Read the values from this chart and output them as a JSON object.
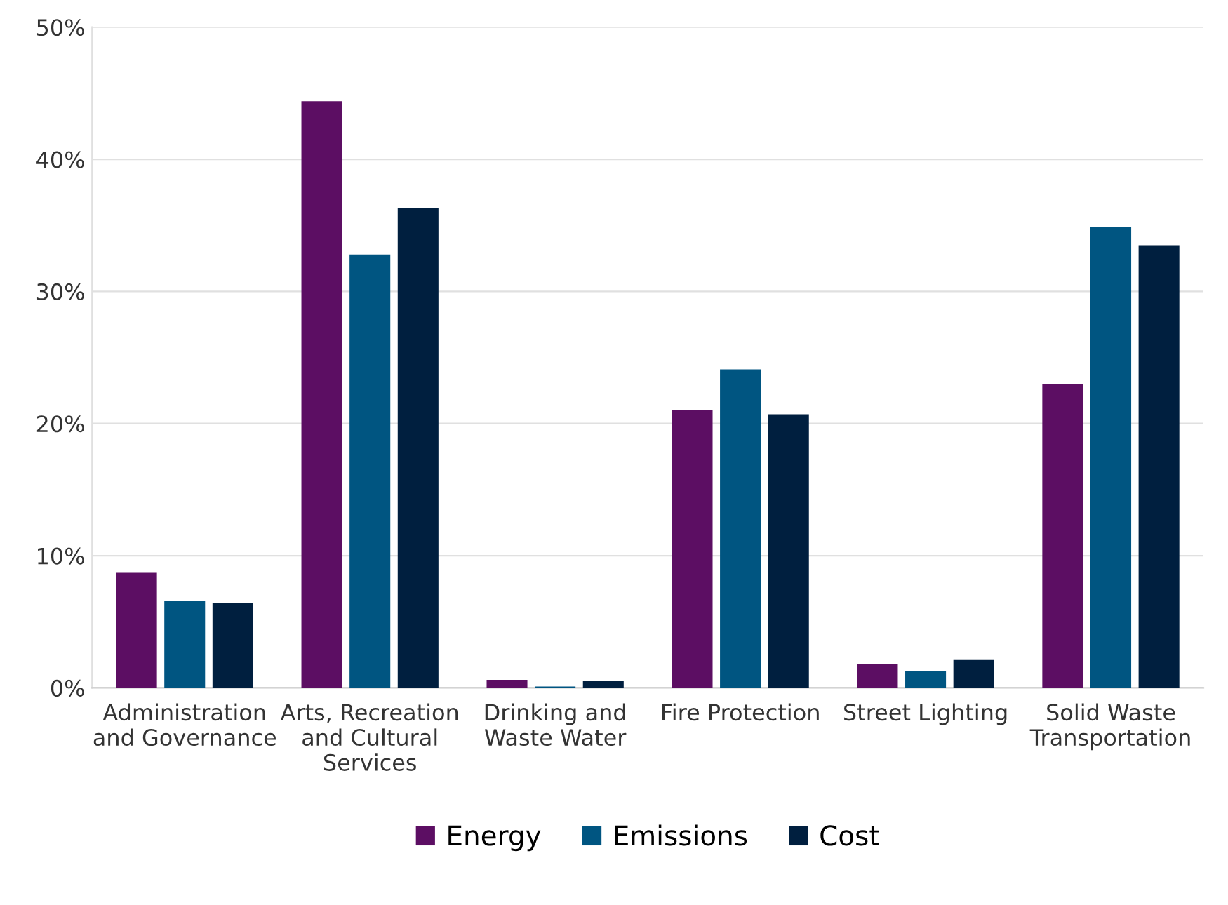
{
  "chart_data": {
    "type": "bar",
    "categories": [
      "Administration and Governance",
      "Arts, Recreation and Cultural Services",
      "Drinking and Waste Water",
      "Fire Protection",
      "Street Lighting",
      "Solid Waste Transportation"
    ],
    "series": [
      {
        "name": "Energy",
        "color": "#5c0e63",
        "values": [
          8.7,
          44.4,
          0.6,
          21.0,
          1.8,
          23.0
        ]
      },
      {
        "name": "Emissions",
        "color": "#005581",
        "values": [
          6.6,
          32.8,
          0.1,
          24.1,
          1.3,
          34.9
        ]
      },
      {
        "name": "Cost",
        "color": "#001f3f",
        "values": [
          6.4,
          36.3,
          0.5,
          20.7,
          2.1,
          33.5
        ]
      }
    ],
    "ylim": [
      0,
      50
    ],
    "yticks": [
      {
        "value": 0,
        "label": "0%"
      },
      {
        "value": 10,
        "label": "10%"
      },
      {
        "value": 20,
        "label": "20%"
      },
      {
        "value": 30,
        "label": "30%"
      },
      {
        "value": 40,
        "label": "40%"
      },
      {
        "value": 50,
        "label": "50%"
      }
    ],
    "grid": "y",
    "legend": "bottom"
  }
}
